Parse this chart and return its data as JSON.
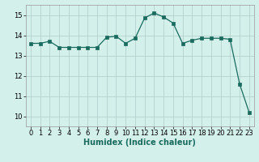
{
  "x": [
    0,
    1,
    2,
    3,
    4,
    5,
    6,
    7,
    8,
    9,
    10,
    11,
    12,
    13,
    14,
    15,
    16,
    17,
    18,
    19,
    20,
    21,
    22,
    23
  ],
  "y": [
    13.6,
    13.6,
    13.7,
    13.4,
    13.4,
    13.4,
    13.4,
    13.4,
    13.9,
    13.95,
    13.6,
    13.85,
    14.85,
    15.1,
    14.9,
    14.6,
    13.6,
    13.75,
    13.85,
    13.85,
    13.85,
    13.8,
    11.6,
    10.2
  ],
  "line_color": "#1a6b5e",
  "marker_color": "#1a6b5e",
  "bg_color": "#d4f0eb",
  "grid_color": "#b0ccc8",
  "xlabel": "Humidex (Indice chaleur)",
  "ylim": [
    9.5,
    15.5
  ],
  "xlim": [
    -0.5,
    23.5
  ],
  "yticks": [
    10,
    11,
    12,
    13,
    14,
    15
  ],
  "xticks": [
    0,
    1,
    2,
    3,
    4,
    5,
    6,
    7,
    8,
    9,
    10,
    11,
    12,
    13,
    14,
    15,
    16,
    17,
    18,
    19,
    20,
    21,
    22,
    23
  ],
  "axis_fontsize": 6,
  "tick_fontsize": 6,
  "xlabel_fontsize": 7,
  "linewidth": 0.9,
  "markersize": 2.2
}
